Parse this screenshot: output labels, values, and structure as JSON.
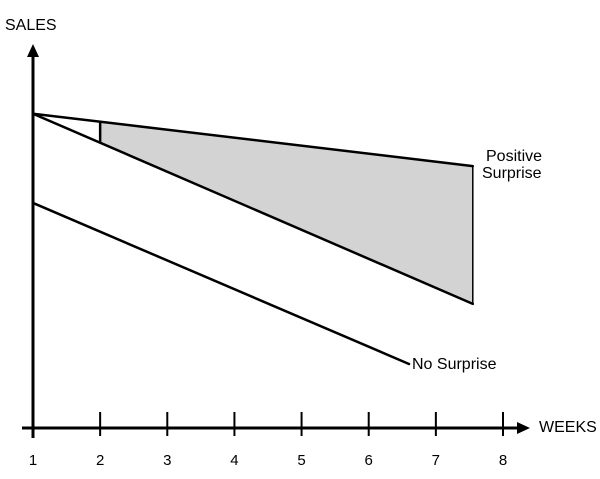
{
  "chart_data": {
    "type": "line",
    "title": "",
    "xlabel": "WEEKS",
    "ylabel": "SALES",
    "xlim": [
      1,
      8
    ],
    "xticks": [
      "1",
      "2",
      "3",
      "4",
      "5",
      "6",
      "7",
      "8"
    ],
    "y_ticks_shown": false,
    "grid": false,
    "series": [
      {
        "name": "Positive Surprise",
        "x": [
          1,
          7.55
        ],
        "y": [
          0.81,
          0.675
        ],
        "style": "solid"
      },
      {
        "name": "No Surprise",
        "x": [
          1,
          6.6
        ],
        "y": [
          0.58,
          0.165
        ],
        "style": "solid"
      },
      {
        "name": "",
        "x": [
          1,
          7.55
        ],
        "y": [
          0.81,
          0.32
        ],
        "style": "solid"
      }
    ],
    "shaded_region": {
      "between": [
        "Positive Surprise",
        "series_3"
      ],
      "x_range": [
        2,
        7.55
      ],
      "color": "#d3d3d3"
    },
    "marker": {
      "x": 2,
      "between": [
        "series_3",
        "Positive Surprise"
      ]
    }
  }
}
